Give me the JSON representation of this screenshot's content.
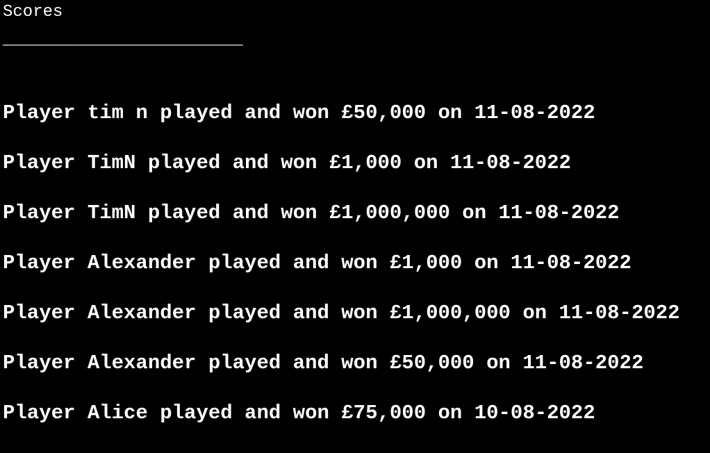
{
  "terminal": {
    "title": "Scores",
    "divider": "________________________",
    "scores": [
      "Player tim n played and won £50,000 on 11-08-2022",
      "Player TimN played and won £1,000 on 11-08-2022",
      "Player TimN played and won £1,000,000 on 11-08-2022",
      "Player Alexander played and won £1,000 on 11-08-2022",
      "Player Alexander played and won £1,000,000 on 11-08-2022",
      "Player Alexander played and won £50,000 on 11-08-2022",
      "Player Alice played and won £75,000 on 10-08-2022"
    ]
  },
  "colors": {
    "background": "#000000",
    "text": "#ffffff"
  }
}
